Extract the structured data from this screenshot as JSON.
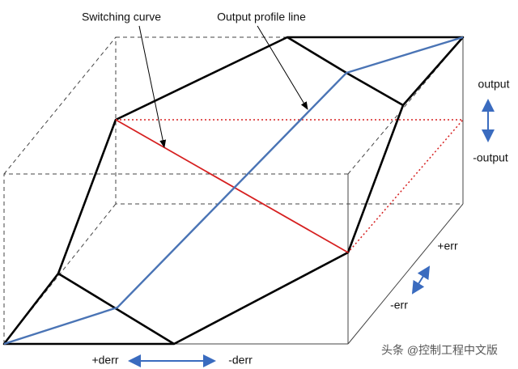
{
  "labels": {
    "switching_curve": "Switching curve",
    "output_profile": "Output profile line",
    "output_pos": "output",
    "output_neg": "-output",
    "err_pos": "+err",
    "err_neg": "-err",
    "derr_pos": "+derr",
    "derr_neg": "-derr"
  },
  "watermark": "头条 @控制工程中文版"
}
